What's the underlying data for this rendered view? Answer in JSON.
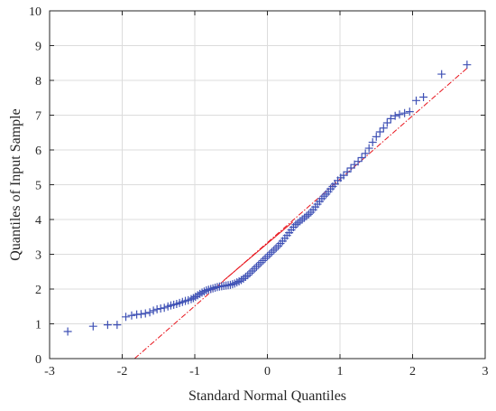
{
  "chart_data": {
    "type": "scatter",
    "title": "",
    "xlabel": "Standard Normal Quantiles",
    "ylabel": "Quantiles of Input Sample",
    "xlim": [
      -3,
      3
    ],
    "ylim": [
      0,
      10
    ],
    "xticks": [
      "-3",
      "-2",
      "-1",
      "0",
      "1",
      "2",
      "3"
    ],
    "yticks": [
      "0",
      "1",
      "2",
      "3",
      "4",
      "5",
      "6",
      "7",
      "8",
      "9",
      "10"
    ],
    "grid": true,
    "marker": "+",
    "colors": {
      "points": "#3f51b5",
      "reference": "#e8141c",
      "frame": "#262626",
      "grid": "#dcdcdc"
    },
    "reference_line": {
      "style": "solid-then-dashdot",
      "solid_from": [
        -0.6,
        2.25
      ],
      "solid_to": [
        0.35,
        3.93
      ],
      "extended_from": [
        -1.83,
        0.0
      ],
      "extended_to": [
        2.75,
        8.35
      ]
    },
    "series": [
      {
        "points": [
          [
            -2.75,
            0.78
          ],
          [
            -2.4,
            0.93
          ],
          [
            -2.2,
            0.97
          ],
          [
            -2.07,
            0.97
          ],
          [
            -1.95,
            1.2
          ],
          [
            -1.87,
            1.24
          ],
          [
            -1.8,
            1.27
          ],
          [
            -1.74,
            1.28
          ],
          [
            -1.68,
            1.3
          ],
          [
            -1.62,
            1.33
          ],
          [
            -1.57,
            1.38
          ],
          [
            -1.52,
            1.42
          ],
          [
            -1.47,
            1.44
          ],
          [
            -1.42,
            1.46
          ],
          [
            -1.37,
            1.5
          ],
          [
            -1.33,
            1.53
          ],
          [
            -1.29,
            1.55
          ],
          [
            -1.25,
            1.57
          ],
          [
            -1.21,
            1.6
          ],
          [
            -1.17,
            1.63
          ],
          [
            -1.13,
            1.66
          ],
          [
            -1.09,
            1.68
          ],
          [
            -1.05,
            1.71
          ],
          [
            -1.02,
            1.74
          ],
          [
            -0.99,
            1.78
          ],
          [
            -0.96,
            1.82
          ],
          [
            -0.93,
            1.86
          ],
          [
            -0.9,
            1.9
          ],
          [
            -0.87,
            1.93
          ],
          [
            -0.84,
            1.96
          ],
          [
            -0.81,
            1.98
          ],
          [
            -0.78,
            2.0
          ],
          [
            -0.75,
            2.02
          ],
          [
            -0.72,
            2.04
          ],
          [
            -0.69,
            2.06
          ],
          [
            -0.66,
            2.07
          ],
          [
            -0.63,
            2.08
          ],
          [
            -0.6,
            2.09
          ],
          [
            -0.57,
            2.1
          ],
          [
            -0.54,
            2.11
          ],
          [
            -0.51,
            2.12
          ],
          [
            -0.48,
            2.14
          ],
          [
            -0.45,
            2.16
          ],
          [
            -0.42,
            2.19
          ],
          [
            -0.39,
            2.22
          ],
          [
            -0.36,
            2.26
          ],
          [
            -0.33,
            2.3
          ],
          [
            -0.3,
            2.35
          ],
          [
            -0.27,
            2.4
          ],
          [
            -0.24,
            2.46
          ],
          [
            -0.21,
            2.52
          ],
          [
            -0.18,
            2.58
          ],
          [
            -0.15,
            2.64
          ],
          [
            -0.12,
            2.7
          ],
          [
            -0.09,
            2.76
          ],
          [
            -0.06,
            2.82
          ],
          [
            -0.03,
            2.88
          ],
          [
            0.0,
            2.94
          ],
          [
            0.03,
            3.0
          ],
          [
            0.06,
            3.06
          ],
          [
            0.09,
            3.12
          ],
          [
            0.12,
            3.18
          ],
          [
            0.15,
            3.24
          ],
          [
            0.18,
            3.31
          ],
          [
            0.21,
            3.38
          ],
          [
            0.24,
            3.46
          ],
          [
            0.27,
            3.54
          ],
          [
            0.3,
            3.62
          ],
          [
            0.33,
            3.7
          ],
          [
            0.36,
            3.78
          ],
          [
            0.39,
            3.85
          ],
          [
            0.42,
            3.9
          ],
          [
            0.45,
            3.95
          ],
          [
            0.48,
            4.0
          ],
          [
            0.51,
            4.05
          ],
          [
            0.54,
            4.1
          ],
          [
            0.57,
            4.15
          ],
          [
            0.6,
            4.21
          ],
          [
            0.63,
            4.28
          ],
          [
            0.66,
            4.36
          ],
          [
            0.69,
            4.44
          ],
          [
            0.72,
            4.52
          ],
          [
            0.75,
            4.6
          ],
          [
            0.78,
            4.67
          ],
          [
            0.81,
            4.73
          ],
          [
            0.84,
            4.8
          ],
          [
            0.87,
            4.88
          ],
          [
            0.9,
            4.95
          ],
          [
            0.93,
            5.02
          ],
          [
            0.97,
            5.12
          ],
          [
            1.01,
            5.2
          ],
          [
            1.05,
            5.27
          ],
          [
            1.1,
            5.37
          ],
          [
            1.15,
            5.48
          ],
          [
            1.2,
            5.58
          ],
          [
            1.25,
            5.67
          ],
          [
            1.3,
            5.78
          ],
          [
            1.35,
            5.9
          ],
          [
            1.4,
            6.05
          ],
          [
            1.45,
            6.22
          ],
          [
            1.5,
            6.38
          ],
          [
            1.55,
            6.52
          ],
          [
            1.6,
            6.63
          ],
          [
            1.65,
            6.78
          ],
          [
            1.7,
            6.9
          ],
          [
            1.76,
            6.98
          ],
          [
            1.82,
            7.02
          ],
          [
            1.89,
            7.06
          ],
          [
            1.96,
            7.1
          ],
          [
            2.05,
            7.42
          ],
          [
            2.15,
            7.52
          ],
          [
            2.4,
            8.18
          ],
          [
            2.75,
            8.45
          ]
        ]
      }
    ]
  }
}
